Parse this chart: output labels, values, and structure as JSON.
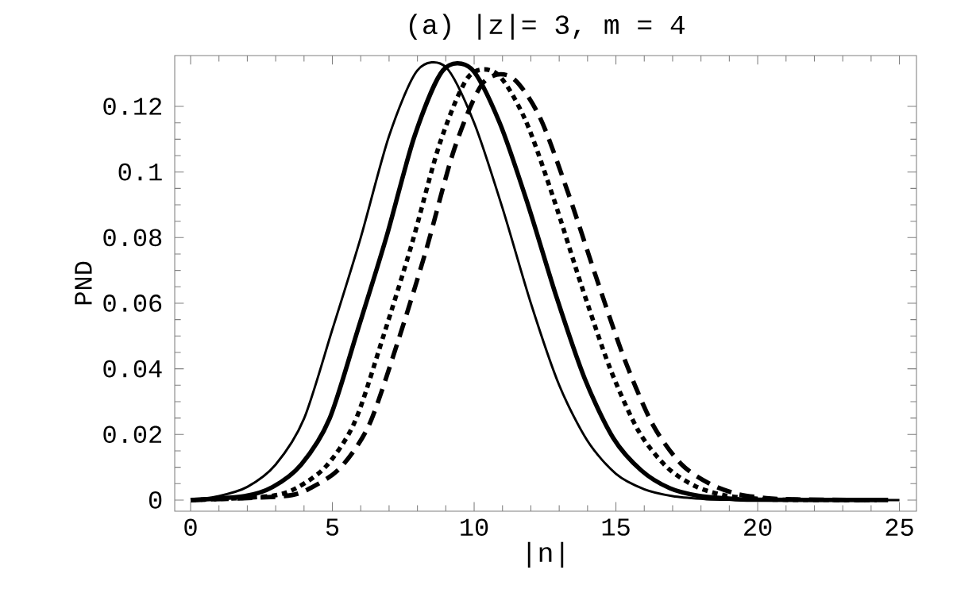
{
  "chart_data": {
    "type": "line",
    "title": "(a) |z|= 3, m = 4",
    "xlabel": "|n|",
    "ylabel": "PND",
    "xlim": [
      -0.56,
      25.6
    ],
    "ylim": [
      -0.0034,
      0.1355
    ],
    "xticks": [
      0,
      5,
      10,
      15,
      20,
      25
    ],
    "yticks": [
      0,
      0.02,
      0.04,
      0.06,
      0.08,
      0.1,
      0.12
    ],
    "grid": false,
    "marker": "none",
    "series": [
      {
        "color": "#000000",
        "line_style": "solid",
        "x": [
          0,
          1,
          2,
          3,
          4,
          5,
          6,
          7,
          8,
          9,
          10,
          11,
          12,
          13,
          14,
          15,
          16,
          17,
          18,
          19,
          25
        ],
        "values": [
          0,
          0.0012,
          0.004,
          0.0108,
          0.0248,
          0.052,
          0.08,
          0.111,
          0.131,
          0.132,
          0.115,
          0.089,
          0.06,
          0.035,
          0.018,
          0.008,
          0.0033,
          0.0012,
          0.0004,
          0.0001,
          0
        ]
      },
      {
        "color": "#000000",
        "line_style": "solid",
        "x": [
          0,
          1.9,
          2.9,
          3.9,
          4.9,
          5.9,
          6.9,
          7.9,
          8.9,
          9.9,
          10.9,
          11.9,
          12.9,
          13.9,
          14.9,
          15.9,
          16.9,
          17.9,
          18.9,
          19.9,
          24.6
        ],
        "values": [
          0,
          0.0012,
          0.004,
          0.0108,
          0.0248,
          0.052,
          0.08,
          0.111,
          0.131,
          0.1315,
          0.115,
          0.09,
          0.062,
          0.037,
          0.019,
          0.009,
          0.0036,
          0.0013,
          0.0005,
          0.0001,
          0
        ]
      },
      {
        "color": "#000000",
        "line_style": "dotted",
        "x": [
          0,
          2.8,
          3.8,
          4.8,
          5.8,
          6.8,
          7.8,
          8.8,
          9.8,
          10.8,
          11.8,
          12.8,
          13.8,
          14.8,
          15.8,
          16.8,
          17.8,
          18.8,
          19.8,
          20.8,
          24.2
        ],
        "values": [
          0,
          0.0012,
          0.004,
          0.0105,
          0.024,
          0.05,
          0.078,
          0.109,
          0.129,
          0.13,
          0.116,
          0.092,
          0.065,
          0.04,
          0.021,
          0.01,
          0.0042,
          0.0015,
          0.0005,
          0.0001,
          0
        ]
      },
      {
        "color": "#000000",
        "line_style": "dashed",
        "x": [
          0,
          3.3,
          4.3,
          5.3,
          6.3,
          7.3,
          8.3,
          9.3,
          10.3,
          11.3,
          12.3,
          13.3,
          14.3,
          15.3,
          16.3,
          17.3,
          18.3,
          19.3,
          20.3,
          21.3,
          23.8
        ],
        "values": [
          0,
          0.0012,
          0.004,
          0.01,
          0.023,
          0.048,
          0.076,
          0.107,
          0.127,
          0.129,
          0.117,
          0.094,
          0.068,
          0.043,
          0.023,
          0.011,
          0.005,
          0.0018,
          0.0006,
          0.0002,
          0
        ]
      }
    ]
  }
}
